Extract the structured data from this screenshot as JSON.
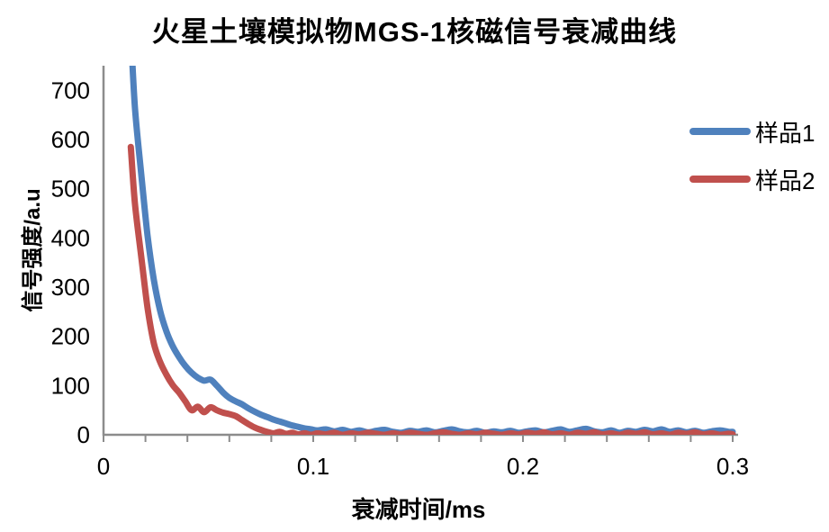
{
  "title": "火星土壤模拟物MGS-1核磁信号衰减曲线",
  "colors": {
    "series1_blue": "#4F81BD",
    "series2_red": "#C0504D",
    "axis": "#8C8C8C",
    "text": "#000000",
    "background": "#FFFFFF"
  },
  "legend": {
    "position": "right",
    "items": [
      {
        "label": "样品1",
        "color": "#4F81BD"
      },
      {
        "label": "样品2",
        "color": "#C0504D"
      }
    ]
  },
  "chart_data": {
    "type": "line",
    "title": "火星土壤模拟物MGS-1核磁信号衰减曲线",
    "xlabel": "衰减时间/ms",
    "ylabel": "信号强度/a.u",
    "xlim": [
      0,
      0.3
    ],
    "ylim": [
      0,
      750
    ],
    "grid": false,
    "legend_position": "right",
    "x_ticks": [
      0,
      0.1,
      0.2,
      0.3
    ],
    "x_tick_labels": [
      "0",
      "0.1",
      "0.2",
      "0.3"
    ],
    "x_minor_step": 0.02,
    "y_ticks": [
      0,
      100,
      200,
      300,
      400,
      500,
      600,
      700
    ],
    "x": [
      0.013,
      0.015,
      0.018,
      0.021,
      0.024,
      0.027,
      0.03,
      0.033,
      0.036,
      0.039,
      0.042,
      0.045,
      0.048,
      0.051,
      0.054,
      0.057,
      0.06,
      0.063,
      0.066,
      0.069,
      0.072,
      0.075,
      0.078,
      0.081,
      0.084,
      0.087,
      0.09,
      0.093,
      0.096,
      0.099,
      0.102,
      0.106,
      0.11,
      0.114,
      0.118,
      0.122,
      0.126,
      0.13,
      0.134,
      0.138,
      0.142,
      0.146,
      0.15,
      0.154,
      0.158,
      0.162,
      0.166,
      0.17,
      0.174,
      0.178,
      0.182,
      0.186,
      0.19,
      0.194,
      0.198,
      0.202,
      0.206,
      0.21,
      0.214,
      0.218,
      0.222,
      0.226,
      0.23,
      0.234,
      0.238,
      0.242,
      0.246,
      0.25,
      0.254,
      0.258,
      0.262,
      0.266,
      0.27,
      0.274,
      0.278,
      0.282,
      0.286,
      0.29,
      0.294,
      0.298,
      0.3
    ],
    "series": [
      {
        "name": "样品1",
        "color": "#4F81BD",
        "values": [
          820,
          665,
          530,
          405,
          315,
          252,
          210,
          180,
          158,
          140,
          126,
          116,
          110,
          112,
          100,
          86,
          75,
          68,
          62,
          54,
          47,
          41,
          36,
          31,
          27,
          23,
          19,
          16,
          13,
          11,
          9,
          11,
          7,
          10,
          6,
          9,
          5,
          8,
          10,
          6,
          4,
          8,
          6,
          9,
          5,
          8,
          11,
          7,
          5,
          8,
          4,
          7,
          5,
          8,
          4,
          7,
          9,
          5,
          8,
          11,
          6,
          9,
          12,
          7,
          5,
          9,
          4,
          8,
          6,
          10,
          7,
          11,
          6,
          9,
          5,
          8,
          4,
          7,
          9,
          6,
          6
        ]
      },
      {
        "name": "样品2",
        "color": "#C0504D",
        "values": [
          585,
          470,
          362,
          258,
          186,
          148,
          122,
          101,
          86,
          68,
          50,
          57,
          46,
          56,
          50,
          45,
          42,
          38,
          30,
          22,
          15,
          10,
          6,
          3,
          6,
          2,
          4,
          1,
          3,
          0,
          3,
          1,
          4,
          0,
          3,
          1,
          4,
          2,
          0,
          3,
          1,
          4,
          2,
          0,
          3,
          5,
          2,
          0,
          3,
          1,
          4,
          2,
          0,
          3,
          1,
          4,
          2,
          5,
          1,
          3,
          0,
          4,
          2,
          5,
          1,
          3,
          0,
          4,
          2,
          5,
          1,
          3,
          0,
          4,
          2,
          5,
          1,
          3,
          0,
          2,
          1
        ]
      }
    ]
  }
}
